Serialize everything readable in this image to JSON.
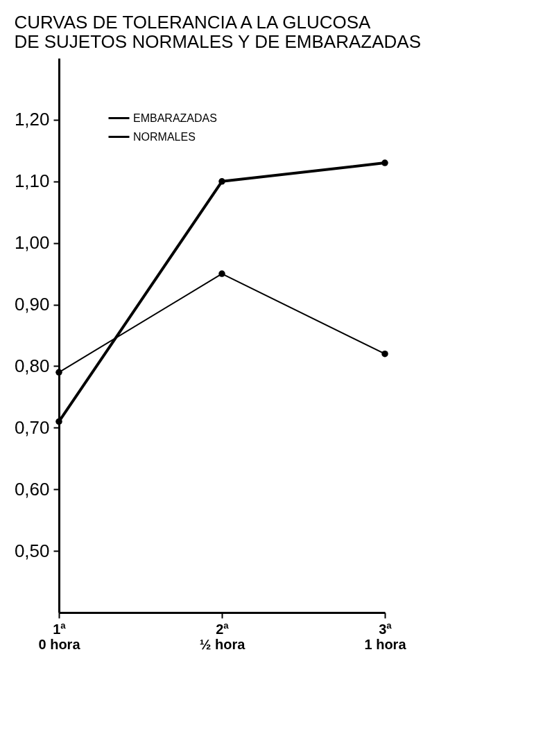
{
  "chart_data": {
    "type": "line",
    "title": "CURVAS DE TOLERANCIA A LA GLUCOSA\nDE SUJETOS NORMALES Y DE EMBARAZADAS",
    "categories": [
      "1ª\n0 hora",
      "2ª\n½ hora",
      "3ª\n1 hora"
    ],
    "series": [
      {
        "name": "EMBARAZADAS",
        "color": "#000000",
        "values": [
          0.71,
          1.1,
          1.13
        ]
      },
      {
        "name": "NORMALES",
        "color": "#000000",
        "values": [
          0.79,
          0.95,
          0.82
        ]
      }
    ],
    "ylim": [
      0.4,
      1.3
    ],
    "yticks": [
      {
        "value": 0.5,
        "label": "0,50"
      },
      {
        "value": 0.6,
        "label": "0,60"
      },
      {
        "value": 0.7,
        "label": "0,70"
      },
      {
        "value": 0.8,
        "label": "0,80"
      },
      {
        "value": 0.9,
        "label": "0,90"
      },
      {
        "value": 1.0,
        "label": "1,00"
      },
      {
        "value": 1.1,
        "label": "1,10"
      },
      {
        "value": 1.2,
        "label": "1,20"
      }
    ],
    "grid": false,
    "legend": "top left",
    "marker": "circle",
    "line_style": "solid"
  }
}
